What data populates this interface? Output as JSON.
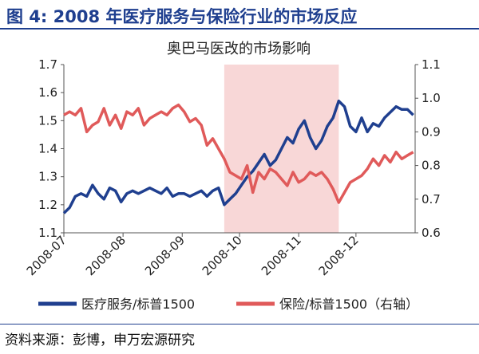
{
  "header": {
    "title": "图 4: 2008 年医疗服务与保险行业的市场反应"
  },
  "source": {
    "text": "资料来源：彭博，申万宏源研究"
  },
  "colors": {
    "header_blue": "#1f3f8f",
    "series_blue": "#1f3f8f",
    "series_red": "#e05a5a",
    "highlight": "#f8d7d7"
  },
  "chart_data": {
    "type": "line",
    "title": "奥巴马医改的市场影响",
    "x_ticks": [
      "2008-07",
      "2008-08",
      "2008-09",
      "2008-10",
      "2008-11",
      "2008-12"
    ],
    "x_range": [
      "2008-07-01",
      "2009-01-01"
    ],
    "y_left": {
      "ticks": [
        "1.1",
        "1.2",
        "1.3",
        "1.4",
        "1.5",
        "1.6",
        "1.7"
      ],
      "range": [
        1.1,
        1.7
      ]
    },
    "y_right": {
      "ticks": [
        "0.6",
        "0.7",
        "0.8",
        "0.9",
        "1.0",
        "1.1"
      ],
      "range": [
        0.6,
        1.1
      ]
    },
    "highlight_range": [
      "2008-09-23",
      "2008-11-22"
    ],
    "grid": false,
    "legend_position": "bottom",
    "series": [
      {
        "name": "医疗服务/标普1500",
        "axis": "left",
        "color": "#1f3f8f",
        "x": [
          "2008-07-01",
          "2008-07-04",
          "2008-07-07",
          "2008-07-10",
          "2008-07-13",
          "2008-07-16",
          "2008-07-19",
          "2008-07-22",
          "2008-07-25",
          "2008-07-28",
          "2008-07-31",
          "2008-08-03",
          "2008-08-06",
          "2008-08-09",
          "2008-08-12",
          "2008-08-15",
          "2008-08-18",
          "2008-08-21",
          "2008-08-24",
          "2008-08-27",
          "2008-08-30",
          "2008-09-02",
          "2008-09-05",
          "2008-09-08",
          "2008-09-11",
          "2008-09-14",
          "2008-09-17",
          "2008-09-20",
          "2008-09-23",
          "2008-09-26",
          "2008-09-29",
          "2008-10-02",
          "2008-10-05",
          "2008-10-08",
          "2008-10-11",
          "2008-10-14",
          "2008-10-17",
          "2008-10-20",
          "2008-10-23",
          "2008-10-26",
          "2008-10-29",
          "2008-11-01",
          "2008-11-04",
          "2008-11-07",
          "2008-11-10",
          "2008-11-13",
          "2008-11-16",
          "2008-11-19",
          "2008-11-22",
          "2008-11-25",
          "2008-11-28",
          "2008-12-01",
          "2008-12-04",
          "2008-12-07",
          "2008-12-10",
          "2008-12-13",
          "2008-12-16",
          "2008-12-19",
          "2008-12-22",
          "2008-12-25",
          "2008-12-28",
          "2008-12-31"
        ],
        "values": [
          1.17,
          1.19,
          1.23,
          1.24,
          1.23,
          1.27,
          1.24,
          1.22,
          1.26,
          1.25,
          1.21,
          1.24,
          1.25,
          1.24,
          1.25,
          1.26,
          1.25,
          1.24,
          1.26,
          1.23,
          1.24,
          1.24,
          1.23,
          1.24,
          1.25,
          1.23,
          1.25,
          1.26,
          1.2,
          1.22,
          1.24,
          1.27,
          1.3,
          1.32,
          1.35,
          1.38,
          1.34,
          1.36,
          1.4,
          1.44,
          1.42,
          1.47,
          1.5,
          1.44,
          1.4,
          1.43,
          1.48,
          1.51,
          1.57,
          1.55,
          1.48,
          1.46,
          1.51,
          1.46,
          1.49,
          1.48,
          1.51,
          1.53,
          1.55,
          1.54,
          1.54,
          1.52
        ]
      },
      {
        "name": "保险/标普1500（右轴）",
        "axis": "right",
        "color": "#e05a5a",
        "x": [
          "2008-07-01",
          "2008-07-04",
          "2008-07-07",
          "2008-07-10",
          "2008-07-13",
          "2008-07-16",
          "2008-07-19",
          "2008-07-22",
          "2008-07-25",
          "2008-07-28",
          "2008-07-31",
          "2008-08-03",
          "2008-08-06",
          "2008-08-09",
          "2008-08-12",
          "2008-08-15",
          "2008-08-18",
          "2008-08-21",
          "2008-08-24",
          "2008-08-27",
          "2008-08-30",
          "2008-09-02",
          "2008-09-05",
          "2008-09-08",
          "2008-09-11",
          "2008-09-14",
          "2008-09-17",
          "2008-09-20",
          "2008-09-23",
          "2008-09-26",
          "2008-09-29",
          "2008-10-02",
          "2008-10-05",
          "2008-10-08",
          "2008-10-11",
          "2008-10-14",
          "2008-10-17",
          "2008-10-20",
          "2008-10-23",
          "2008-10-26",
          "2008-10-29",
          "2008-11-01",
          "2008-11-04",
          "2008-11-07",
          "2008-11-10",
          "2008-11-13",
          "2008-11-16",
          "2008-11-19",
          "2008-11-22",
          "2008-11-25",
          "2008-11-28",
          "2008-12-01",
          "2008-12-04",
          "2008-12-07",
          "2008-12-10",
          "2008-12-13",
          "2008-12-16",
          "2008-12-19",
          "2008-12-22",
          "2008-12-25",
          "2008-12-28",
          "2008-12-31"
        ],
        "values": [
          0.95,
          0.96,
          0.95,
          0.97,
          0.9,
          0.92,
          0.93,
          0.97,
          0.92,
          0.95,
          0.91,
          0.96,
          0.95,
          0.97,
          0.92,
          0.94,
          0.95,
          0.96,
          0.95,
          0.97,
          0.98,
          0.96,
          0.93,
          0.94,
          0.92,
          0.86,
          0.88,
          0.85,
          0.82,
          0.78,
          0.77,
          0.76,
          0.8,
          0.72,
          0.78,
          0.76,
          0.79,
          0.78,
          0.76,
          0.74,
          0.78,
          0.75,
          0.76,
          0.78,
          0.77,
          0.78,
          0.76,
          0.73,
          0.69,
          0.72,
          0.75,
          0.76,
          0.77,
          0.79,
          0.82,
          0.8,
          0.83,
          0.81,
          0.84,
          0.82,
          0.83,
          0.84
        ]
      }
    ]
  }
}
